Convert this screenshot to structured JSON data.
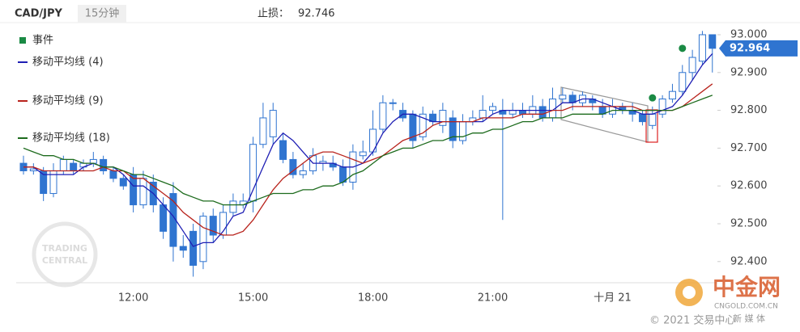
{
  "chart_data": {
    "type": "candlestick",
    "title": "CAD/JPY",
    "subtitle": "15分钟",
    "stop_loss_label": "止损：",
    "stop_loss": 92.746,
    "current_price": 92.964,
    "watermarks": [
      "TRADING",
      "CENTRAL",
      "中金网",
      "CNGOLD.COM.CN",
      "© 2021 交易中心",
      "新 媒 体"
    ],
    "up_color": "#ffffff",
    "down_color": "#2f74d0",
    "candle_border": "#2f74d0",
    "categories": [
      null,
      null,
      null,
      null,
      null,
      null,
      null,
      null,
      null,
      null,
      null,
      "12:00",
      null,
      null,
      null,
      null,
      null,
      null,
      null,
      null,
      null,
      null,
      null,
      "15:00",
      null,
      null,
      null,
      null,
      null,
      null,
      null,
      null,
      null,
      null,
      null,
      "18:00",
      null,
      null,
      null,
      null,
      null,
      null,
      null,
      null,
      null,
      null,
      null,
      "21:00",
      null,
      null,
      null,
      null,
      null,
      null,
      null,
      null,
      null,
      null,
      null,
      "十月 21",
      null,
      null,
      null,
      null,
      null,
      null,
      null,
      null,
      null,
      null
    ],
    "open": [
      92.66,
      92.64,
      92.64,
      92.58,
      92.64,
      92.66,
      92.65,
      92.66,
      92.67,
      92.64,
      92.62,
      92.63,
      92.55,
      92.61,
      92.55,
      92.58,
      92.44,
      92.48,
      92.4,
      92.52,
      92.47,
      92.53,
      92.55,
      92.56,
      92.71,
      92.73,
      92.72,
      92.67,
      92.63,
      92.64,
      92.66,
      92.66,
      92.65,
      92.61,
      92.68,
      92.69,
      92.75,
      92.82,
      92.8,
      92.79,
      92.73,
      92.79,
      92.76,
      92.78,
      92.72,
      92.77,
      92.78,
      92.8,
      92.8,
      92.79,
      92.8,
      92.79,
      92.81,
      92.78,
      92.83,
      92.84,
      92.82,
      92.83,
      92.81,
      92.79,
      92.81,
      92.8,
      92.79,
      92.76,
      92.79,
      92.83,
      92.85,
      92.9,
      92.93,
      93.0
    ],
    "high": [
      92.68,
      92.66,
      92.65,
      92.66,
      92.68,
      92.67,
      92.67,
      92.69,
      92.68,
      92.65,
      92.63,
      92.65,
      92.64,
      92.63,
      92.57,
      92.61,
      92.47,
      92.5,
      92.53,
      92.54,
      92.55,
      92.58,
      92.58,
      92.73,
      92.82,
      92.82,
      92.74,
      92.69,
      92.66,
      92.7,
      92.68,
      92.68,
      92.67,
      92.71,
      92.72,
      92.8,
      92.84,
      92.83,
      92.82,
      92.8,
      92.81,
      92.8,
      92.82,
      92.8,
      92.79,
      92.8,
      92.84,
      92.82,
      92.83,
      92.82,
      92.82,
      92.84,
      92.83,
      92.86,
      92.86,
      92.85,
      92.85,
      92.84,
      92.83,
      92.83,
      92.82,
      92.82,
      92.8,
      92.81,
      92.84,
      92.87,
      92.92,
      92.96,
      93.01,
      93.0
    ],
    "low": [
      92.63,
      92.63,
      92.56,
      92.57,
      92.63,
      92.63,
      92.64,
      92.65,
      92.63,
      92.61,
      92.59,
      92.53,
      92.54,
      92.53,
      92.46,
      92.4,
      92.41,
      92.36,
      92.38,
      92.45,
      92.46,
      92.52,
      92.54,
      92.53,
      92.7,
      92.71,
      92.66,
      92.62,
      92.62,
      92.63,
      92.64,
      92.64,
      92.6,
      92.59,
      92.67,
      92.68,
      92.74,
      92.8,
      92.77,
      92.7,
      92.72,
      92.76,
      92.74,
      92.7,
      92.71,
      92.76,
      92.77,
      92.79,
      92.51,
      92.78,
      92.78,
      92.78,
      92.77,
      92.77,
      92.82,
      92.8,
      92.81,
      92.8,
      92.78,
      92.78,
      92.79,
      92.77,
      92.76,
      92.75,
      92.78,
      92.82,
      92.84,
      92.88,
      92.92,
      92.9
    ],
    "close": [
      92.64,
      92.645,
      92.58,
      92.64,
      92.67,
      92.64,
      92.66,
      92.67,
      92.64,
      92.62,
      92.6,
      92.55,
      92.62,
      92.55,
      92.48,
      92.44,
      92.43,
      92.39,
      92.52,
      92.47,
      92.53,
      92.56,
      92.56,
      92.71,
      92.78,
      92.8,
      92.67,
      92.63,
      92.64,
      92.68,
      92.665,
      92.65,
      92.61,
      92.69,
      92.69,
      92.75,
      92.82,
      92.82,
      92.78,
      92.72,
      92.79,
      92.77,
      92.8,
      92.72,
      92.77,
      92.78,
      92.8,
      92.81,
      92.79,
      92.8,
      92.79,
      92.81,
      92.78,
      92.83,
      92.84,
      92.82,
      92.84,
      92.82,
      92.79,
      92.81,
      92.8,
      92.79,
      92.77,
      92.79,
      92.83,
      92.85,
      92.9,
      92.94,
      93.0,
      92.964
    ],
    "series": [
      {
        "name": "移动平均线 (4)",
        "color": "#1f1fb4",
        "values": [
          92.65,
          92.65,
          92.63,
          92.63,
          92.63,
          92.63,
          92.65,
          92.66,
          92.65,
          92.65,
          92.63,
          92.6,
          92.6,
          92.58,
          92.55,
          92.52,
          92.48,
          92.44,
          92.45,
          92.45,
          92.48,
          92.52,
          92.53,
          92.59,
          92.65,
          92.71,
          92.74,
          92.72,
          92.69,
          92.66,
          92.66,
          92.66,
          92.65,
          92.65,
          92.66,
          92.69,
          92.74,
          92.77,
          92.79,
          92.79,
          92.78,
          92.77,
          92.77,
          92.77,
          92.77,
          92.77,
          92.77,
          92.79,
          92.8,
          92.8,
          92.8,
          92.8,
          92.8,
          92.8,
          92.82,
          92.82,
          92.83,
          92.83,
          92.82,
          92.81,
          92.8,
          92.8,
          92.79,
          92.79,
          92.8,
          92.81,
          92.84,
          92.88,
          92.92,
          92.95
        ]
      },
      {
        "name": "移动平均线 (9)",
        "color": "#b8231c",
        "values": [
          92.65,
          92.65,
          92.64,
          92.64,
          92.64,
          92.64,
          92.64,
          92.64,
          92.65,
          92.64,
          92.64,
          92.62,
          92.62,
          92.6,
          92.58,
          92.56,
          92.53,
          92.51,
          92.49,
          92.48,
          92.47,
          92.47,
          92.48,
          92.51,
          92.55,
          92.59,
          92.62,
          92.64,
          92.66,
          92.68,
          92.69,
          92.69,
          92.68,
          92.67,
          92.66,
          92.67,
          92.68,
          92.7,
          92.72,
          92.73,
          92.74,
          92.76,
          92.77,
          92.77,
          92.77,
          92.77,
          92.78,
          92.78,
          92.78,
          92.78,
          92.79,
          92.79,
          92.79,
          92.8,
          92.8,
          92.81,
          92.81,
          92.81,
          92.81,
          92.81,
          92.81,
          92.81,
          92.8,
          92.8,
          92.8,
          92.8,
          92.81,
          92.83,
          92.85,
          92.87
        ]
      },
      {
        "name": "移动平均线 (18)",
        "color": "#1d6b1d",
        "values": [
          92.7,
          92.69,
          92.68,
          92.68,
          92.67,
          92.67,
          92.66,
          92.66,
          92.65,
          92.65,
          92.64,
          92.63,
          92.63,
          92.62,
          92.61,
          92.6,
          92.58,
          92.57,
          92.56,
          92.56,
          92.55,
          92.55,
          92.55,
          92.56,
          92.57,
          92.58,
          92.58,
          92.58,
          92.59,
          92.59,
          92.6,
          92.6,
          92.61,
          92.63,
          92.64,
          92.66,
          92.68,
          92.69,
          92.7,
          92.7,
          92.71,
          92.72,
          92.72,
          92.73,
          92.73,
          92.74,
          92.74,
          92.75,
          92.75,
          92.76,
          92.77,
          92.77,
          92.78,
          92.78,
          92.78,
          92.79,
          92.79,
          92.79,
          92.79,
          92.8,
          92.8,
          92.8,
          92.8,
          92.8,
          92.8,
          92.8,
          92.81,
          92.82,
          92.83,
          92.84
        ]
      }
    ],
    "events": {
      "name": "事件",
      "color": "#1a8a44",
      "values": [
        null,
        null,
        null,
        null,
        null,
        null,
        null,
        null,
        null,
        null,
        null,
        null,
        null,
        null,
        null,
        null,
        null,
        null,
        null,
        null,
        null,
        null,
        null,
        null,
        null,
        null,
        null,
        null,
        null,
        null,
        null,
        null,
        null,
        null,
        null,
        null,
        null,
        null,
        null,
        null,
        null,
        null,
        null,
        null,
        null,
        null,
        null,
        null,
        null,
        null,
        null,
        null,
        null,
        null,
        null,
        null,
        null,
        null,
        null,
        null,
        null,
        null,
        null,
        92.833,
        null,
        null,
        92.964,
        null,
        null,
        null
      ]
    },
    "ylim": [
      92.344,
      93.032
    ],
    "yticks": [
      {
        "value": 92.4,
        "label": "92.400"
      },
      {
        "value": 92.5,
        "label": "92.500"
      },
      {
        "value": 92.6,
        "label": "92.600"
      },
      {
        "value": 92.7,
        "label": "92.700"
      },
      {
        "value": 92.8,
        "label": "92.800"
      },
      {
        "value": 92.9,
        "label": "92.900"
      },
      {
        "value": 93,
        "label": "93.000"
      }
    ]
  }
}
